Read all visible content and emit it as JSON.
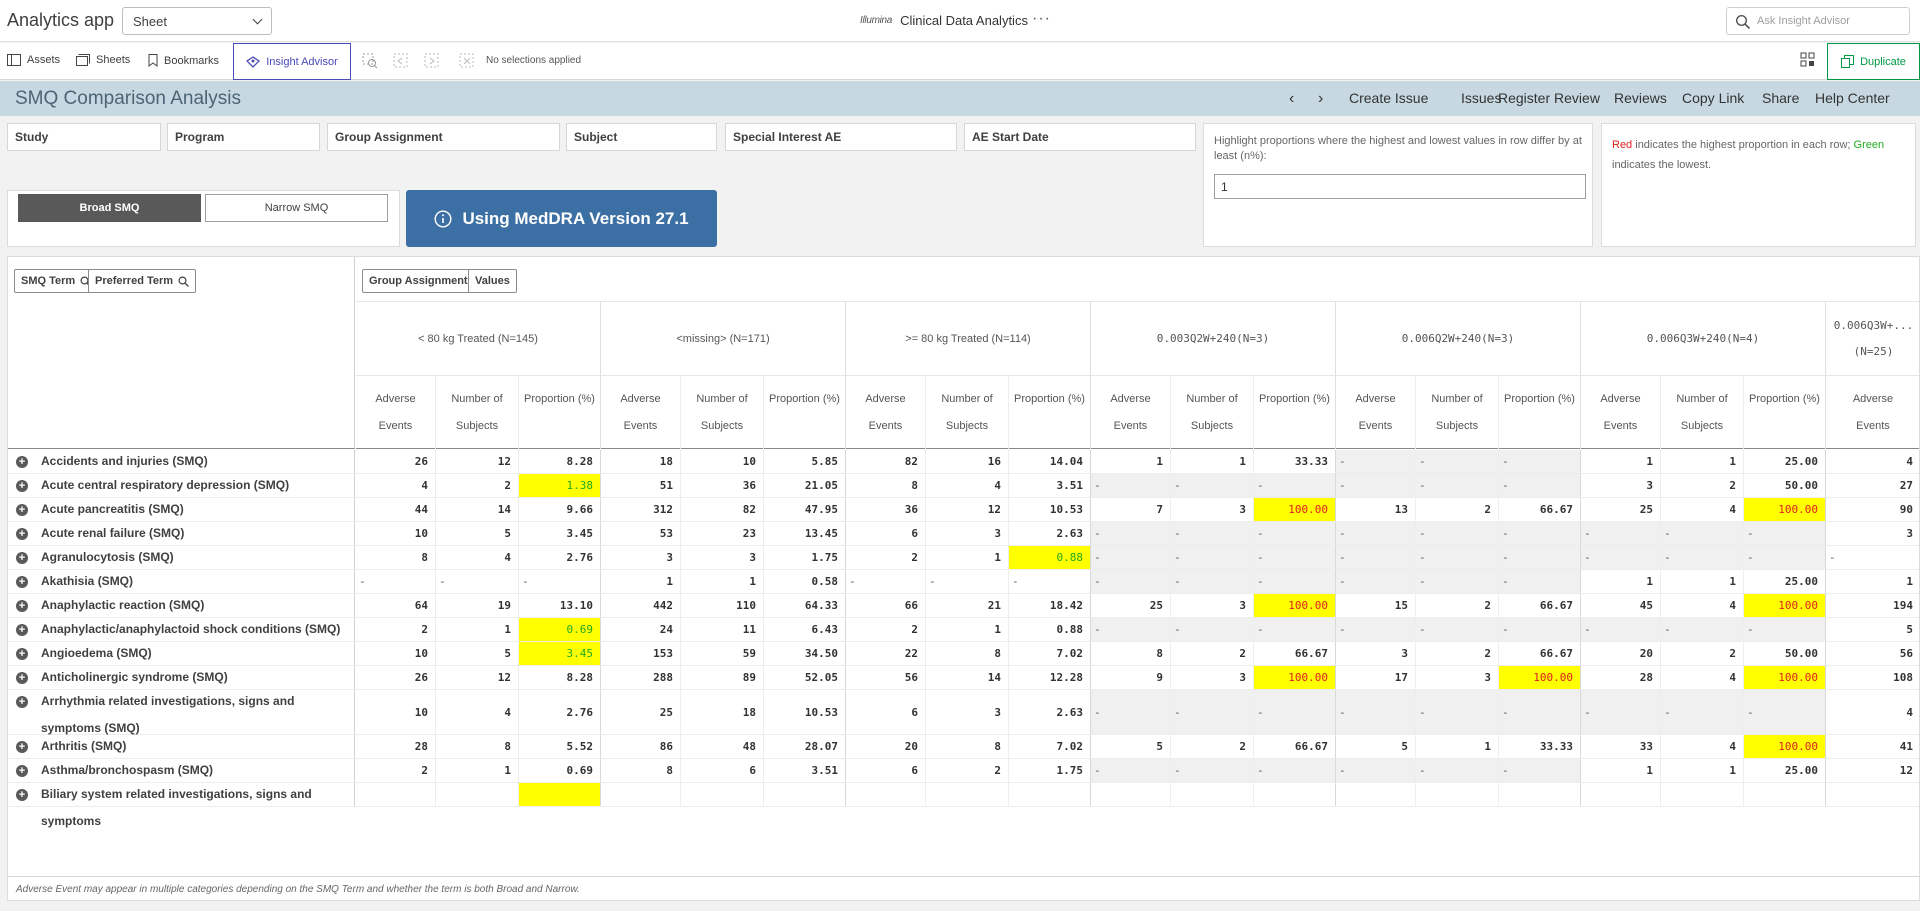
{
  "header": {
    "app_title": "Analytics app",
    "sheet_select": "Sheet",
    "brand_logo": "Illumina",
    "brand_name": "Clinical Data Analytics",
    "more": "···",
    "search_placeholder": "Ask Insight Advisor"
  },
  "toolbar": {
    "assets": "Assets",
    "sheets": "Sheets",
    "bookmarks": "Bookmarks",
    "insight_advisor": "Insight Advisor",
    "no_selections": "No selections applied",
    "duplicate": "Duplicate"
  },
  "titlebar": {
    "title": "SMQ Comparison Analysis",
    "prev": "‹",
    "next": "›",
    "links": [
      "Create Issue",
      "Issues",
      "Register Review",
      "Reviews",
      "Copy Link",
      "Share",
      "Help Center"
    ]
  },
  "filters": [
    "Study",
    "Program",
    "Group Assignment",
    "Subject",
    "Special Interest AE",
    "AE Start Date"
  ],
  "highlight": {
    "label": "Highlight proportions where the highest and lowest values in row differ by at least (n%):",
    "value": "1"
  },
  "legend": {
    "red_word": "Red",
    "middle": " indicates the highest proportion in each row; ",
    "green_word": "Green",
    "end": " indicates the lowest."
  },
  "smq_toggle": {
    "broad": "Broad SMQ",
    "narrow": "Narrow SMQ"
  },
  "meddra": "Using MedDRA Version 27.1",
  "table": {
    "dims": [
      "SMQ Term",
      "Preferred Term"
    ],
    "col_dims": [
      "Group Assignment",
      "Values"
    ],
    "groups": [
      "< 80 kg Treated (N=145)",
      "<missing> (N=171)",
      ">= 80 kg Treated (N=114)",
      "0.003Q2W+240(N=3)",
      "0.006Q2W+240(N=3)",
      "0.006Q3W+240(N=4)",
      "0.006Q3W+...",
      "(N=25)"
    ],
    "measures": [
      "Adverse Events",
      "Number of Subjects",
      "Proportion (%)"
    ],
    "measure_lines": [
      [
        "Adverse",
        "Events"
      ],
      [
        "Number of",
        "Subjects"
      ],
      [
        "Proportion (%)"
      ]
    ],
    "rows": [
      {
        "term": "Accidents and injuries (SMQ)",
        "cells": [
          "26",
          "12",
          "8.28",
          "18",
          "10",
          "5.85",
          "82",
          "16",
          "14.04",
          "1",
          "1",
          "33.33",
          "-",
          "-",
          "-",
          "1",
          "1",
          "25.00",
          "4"
        ]
      },
      {
        "term": "Acute central respiratory depression (SMQ)",
        "cells": [
          "4",
          "2",
          "1.38",
          "51",
          "36",
          "21.05",
          "8",
          "4",
          "3.51",
          "-",
          "-",
          "-",
          "-",
          "-",
          "-",
          "3",
          "2",
          "50.00",
          "27"
        ]
      },
      {
        "term": "Acute pancreatitis (SMQ)",
        "cells": [
          "44",
          "14",
          "9.66",
          "312",
          "82",
          "47.95",
          "36",
          "12",
          "10.53",
          "7",
          "3",
          "100.00",
          "13",
          "2",
          "66.67",
          "25",
          "4",
          "100.00",
          "90"
        ]
      },
      {
        "term": "Acute renal failure (SMQ)",
        "cells": [
          "10",
          "5",
          "3.45",
          "53",
          "23",
          "13.45",
          "6",
          "3",
          "2.63",
          "-",
          "-",
          "-",
          "-",
          "-",
          "-",
          "-",
          "-",
          "-",
          "3"
        ]
      },
      {
        "term": "Agranulocytosis (SMQ)",
        "cells": [
          "8",
          "4",
          "2.76",
          "3",
          "3",
          "1.75",
          "2",
          "1",
          "0.88",
          "-",
          "-",
          "-",
          "-",
          "-",
          "-",
          "-",
          "-",
          "-",
          "-"
        ]
      },
      {
        "term": "Akathisia (SMQ)",
        "cells": [
          "-",
          "-",
          "-",
          "1",
          "1",
          "0.58",
          "-",
          "-",
          "-",
          "-",
          "-",
          "-",
          "-",
          "-",
          "-",
          "1",
          "1",
          "25.00",
          "1"
        ]
      },
      {
        "term": "Anaphylactic reaction (SMQ)",
        "cells": [
          "64",
          "19",
          "13.10",
          "442",
          "110",
          "64.33",
          "66",
          "21",
          "18.42",
          "25",
          "3",
          "100.00",
          "15",
          "2",
          "66.67",
          "45",
          "4",
          "100.00",
          "194"
        ]
      },
      {
        "term": "Anaphylactic/anaphylactoid shock conditions (SMQ)",
        "cells": [
          "2",
          "1",
          "0.69",
          "24",
          "11",
          "6.43",
          "2",
          "1",
          "0.88",
          "-",
          "-",
          "-",
          "-",
          "-",
          "-",
          "-",
          "-",
          "-",
          "5"
        ]
      },
      {
        "term": "Angioedema (SMQ)",
        "cells": [
          "10",
          "5",
          "3.45",
          "153",
          "59",
          "34.50",
          "22",
          "8",
          "7.02",
          "8",
          "2",
          "66.67",
          "3",
          "2",
          "66.67",
          "20",
          "2",
          "50.00",
          "56"
        ]
      },
      {
        "term": "Anticholinergic syndrome (SMQ)",
        "cells": [
          "26",
          "12",
          "8.28",
          "288",
          "89",
          "52.05",
          "56",
          "14",
          "12.28",
          "9",
          "3",
          "100.00",
          "17",
          "3",
          "100.00",
          "28",
          "4",
          "100.00",
          "108"
        ]
      },
      {
        "term": "Arrhythmia related investigations, signs and symptoms (SMQ)",
        "cells": [
          "10",
          "4",
          "2.76",
          "25",
          "18",
          "10.53",
          "6",
          "3",
          "2.63",
          "-",
          "-",
          "-",
          "-",
          "-",
          "-",
          "-",
          "-",
          "-",
          "4"
        ]
      },
      {
        "term": "Arthritis (SMQ)",
        "cells": [
          "28",
          "8",
          "5.52",
          "86",
          "48",
          "28.07",
          "20",
          "8",
          "7.02",
          "5",
          "2",
          "66.67",
          "5",
          "1",
          "33.33",
          "33",
          "4",
          "100.00",
          "41"
        ]
      },
      {
        "term": "Asthma/bronchospasm (SMQ)",
        "cells": [
          "2",
          "1",
          "0.69",
          "8",
          "6",
          "3.51",
          "6",
          "2",
          "1.75",
          "-",
          "-",
          "-",
          "-",
          "-",
          "-",
          "1",
          "1",
          "25.00",
          "12"
        ]
      },
      {
        "term": "Biliary system related investigations, signs and symptoms",
        "cells": [
          "",
          "",
          "",
          "",
          "",
          "",
          "",
          "",
          "",
          "",
          "",
          "",
          "",
          "",
          "",
          "",
          "",
          "",
          ""
        ]
      }
    ],
    "highlights": [
      {
        "row": 1,
        "col": 2,
        "tone": "green"
      },
      {
        "row": 2,
        "col": 11,
        "tone": "red"
      },
      {
        "row": 2,
        "col": 17,
        "tone": "red"
      },
      {
        "row": 4,
        "col": 8,
        "tone": "green"
      },
      {
        "row": 6,
        "col": 11,
        "tone": "red"
      },
      {
        "row": 6,
        "col": 17,
        "tone": "red"
      },
      {
        "row": 7,
        "col": 2,
        "tone": "green"
      },
      {
        "row": 8,
        "col": 2,
        "tone": "green"
      },
      {
        "row": 9,
        "col": 11,
        "tone": "red"
      },
      {
        "row": 9,
        "col": 14,
        "tone": "red"
      },
      {
        "row": 9,
        "col": 17,
        "tone": "red"
      },
      {
        "row": 11,
        "col": 17,
        "tone": "red"
      },
      {
        "row": 13,
        "col": 2,
        "tone": "none"
      }
    ],
    "footer": "Adverse Event may appear in multiple categories depending on the SMQ Term and whether the term is both Broad and Narrow."
  }
}
